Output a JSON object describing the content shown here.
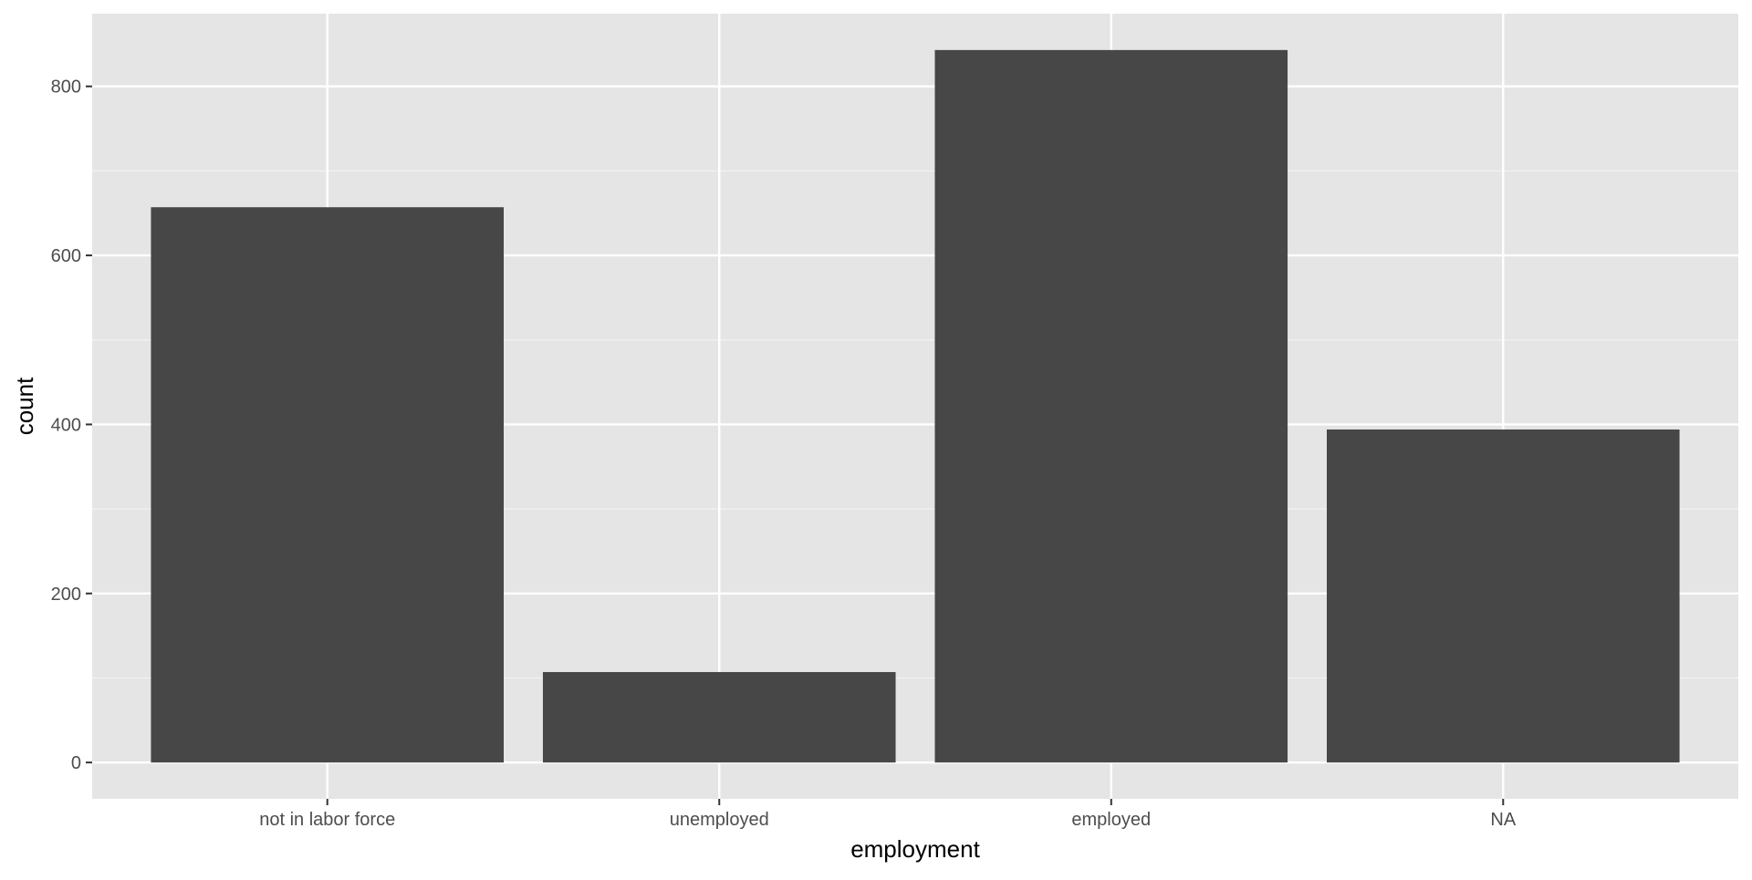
{
  "chart_data": {
    "type": "bar",
    "categories": [
      "not in labor force",
      "unemployed",
      "employed",
      "NA"
    ],
    "values": [
      657,
      107,
      843,
      394
    ],
    "xlabel": "employment",
    "ylabel": "count",
    "ylim": [
      -43,
      886
    ],
    "yticks": [
      0,
      200,
      400,
      600,
      800
    ],
    "grid": true,
    "colors": {
      "bar": "#474747",
      "panel": "#e5e5e5",
      "grid_major": "#ffffff",
      "grid_minor": "#f2f2f2",
      "axis_text": "#4d4d4d",
      "axis_tick": "#333333"
    }
  }
}
